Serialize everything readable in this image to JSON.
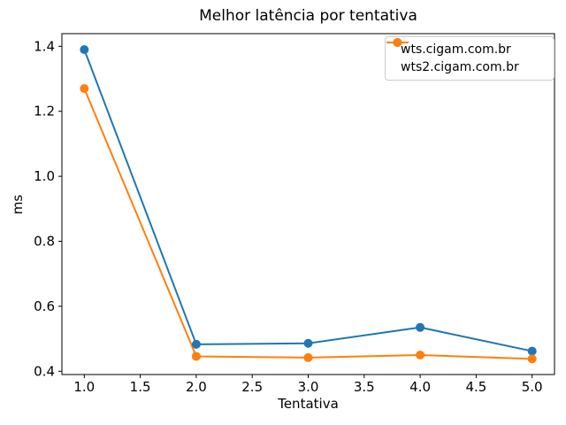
{
  "chart_data": {
    "type": "line",
    "title": "Melhor latência por tentativa",
    "xlabel": "Tentativa",
    "ylabel": "ms",
    "x": [
      1,
      2,
      3,
      4,
      5
    ],
    "series": [
      {
        "name": "wts.cigam.com.br",
        "color": "#1f77b4",
        "values": [
          1.39,
          0.483,
          0.486,
          0.535,
          0.462
        ]
      },
      {
        "name": "wts2.cigam.com.br",
        "color": "#ff7f0e",
        "values": [
          1.27,
          0.446,
          0.442,
          0.45,
          0.438
        ]
      }
    ],
    "xticks": {
      "values": [
        1,
        1.5,
        2,
        2.5,
        3,
        3.5,
        4,
        4.5,
        5
      ],
      "labels": [
        "1.0",
        "1.5",
        "2.0",
        "2.5",
        "3.0",
        "3.5",
        "4.0",
        "4.5",
        "5.0"
      ]
    },
    "yticks": {
      "values": [
        0.4,
        0.6,
        0.8,
        1.0,
        1.2,
        1.4
      ],
      "labels": [
        "0.4",
        "0.6",
        "0.8",
        "1.0",
        "1.2",
        "1.4"
      ]
    },
    "xlim": [
      0.8,
      5.2
    ],
    "ylim": [
      0.39,
      1.439
    ],
    "grid": false,
    "legend": {
      "position": "upper-right",
      "entries": [
        "wts.cigam.com.br",
        "wts2.cigam.com.br"
      ]
    },
    "style": {
      "axis_color": "#000000",
      "tick_label_color": "#000000",
      "legend_border_color": "#cccccc",
      "line_width": 2,
      "marker_radius": 5
    }
  }
}
